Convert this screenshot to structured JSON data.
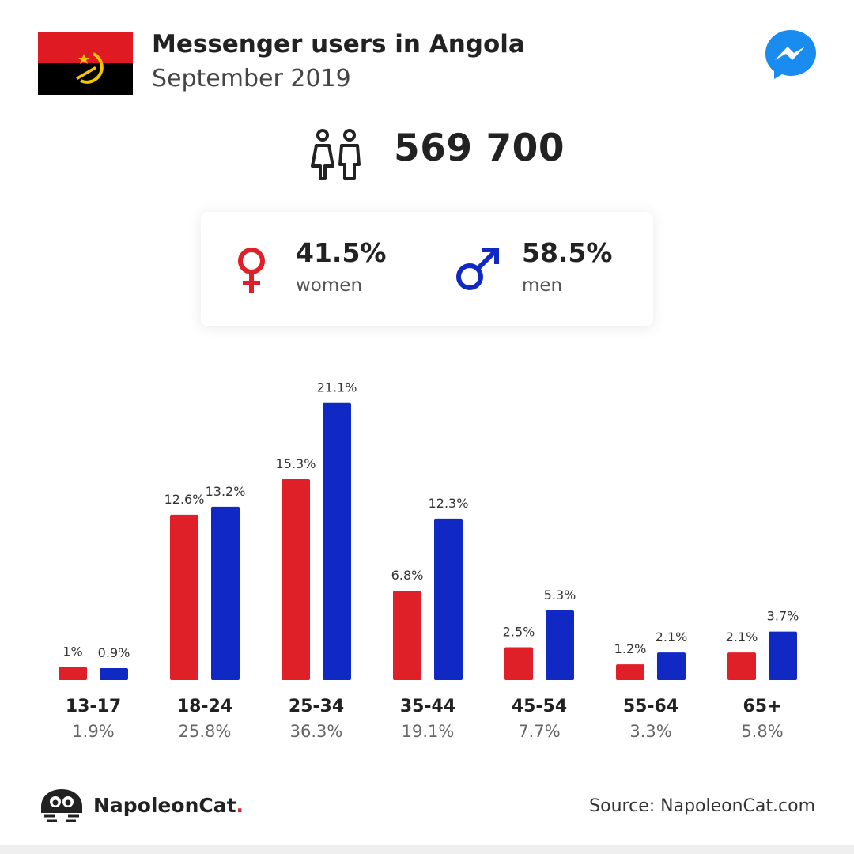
{
  "header": {
    "title": "Messenger users in Angola",
    "subtitle": "September 2019",
    "flag_icon": "angola-flag-icon",
    "app_icon": "messenger-icon"
  },
  "summary": {
    "total": "569 700",
    "icon": "users-icon"
  },
  "gender": {
    "women": {
      "percent": "41.5%",
      "label": "women",
      "icon": "female-icon",
      "color": "#e02028"
    },
    "men": {
      "percent": "58.5%",
      "label": "men",
      "icon": "male-icon",
      "color": "#1129c4"
    }
  },
  "chart_data": {
    "type": "bar",
    "categories": [
      "13-17",
      "18-24",
      "25-34",
      "35-44",
      "45-54",
      "55-64",
      "65+"
    ],
    "category_totals": [
      "1.9%",
      "25.8%",
      "36.3%",
      "19.1%",
      "7.7%",
      "3.3%",
      "5.8%"
    ],
    "series": [
      {
        "color": "#e02028",
        "values": [
          1,
          12.6,
          15.3,
          6.8,
          2.5,
          1.2,
          2.1
        ],
        "labels": [
          "1%",
          "12.6%",
          "15.3%",
          "6.8%",
          "2.5%",
          "1.2%",
          "2.1%"
        ]
      },
      {
        "color": "#1129c4",
        "values": [
          0.9,
          13.2,
          21.1,
          12.3,
          5.3,
          2.1,
          3.7
        ],
        "labels": [
          "0.9%",
          "13.2%",
          "21.1%",
          "12.3%",
          "5.3%",
          "2.1%",
          "3.7%"
        ]
      }
    ]
  },
  "footer": {
    "brand": "NapoleonCat",
    "brand_dot": ".",
    "brand_icon": "napoleoncat-logo-icon",
    "source": "Source: NapoleonCat.com"
  }
}
